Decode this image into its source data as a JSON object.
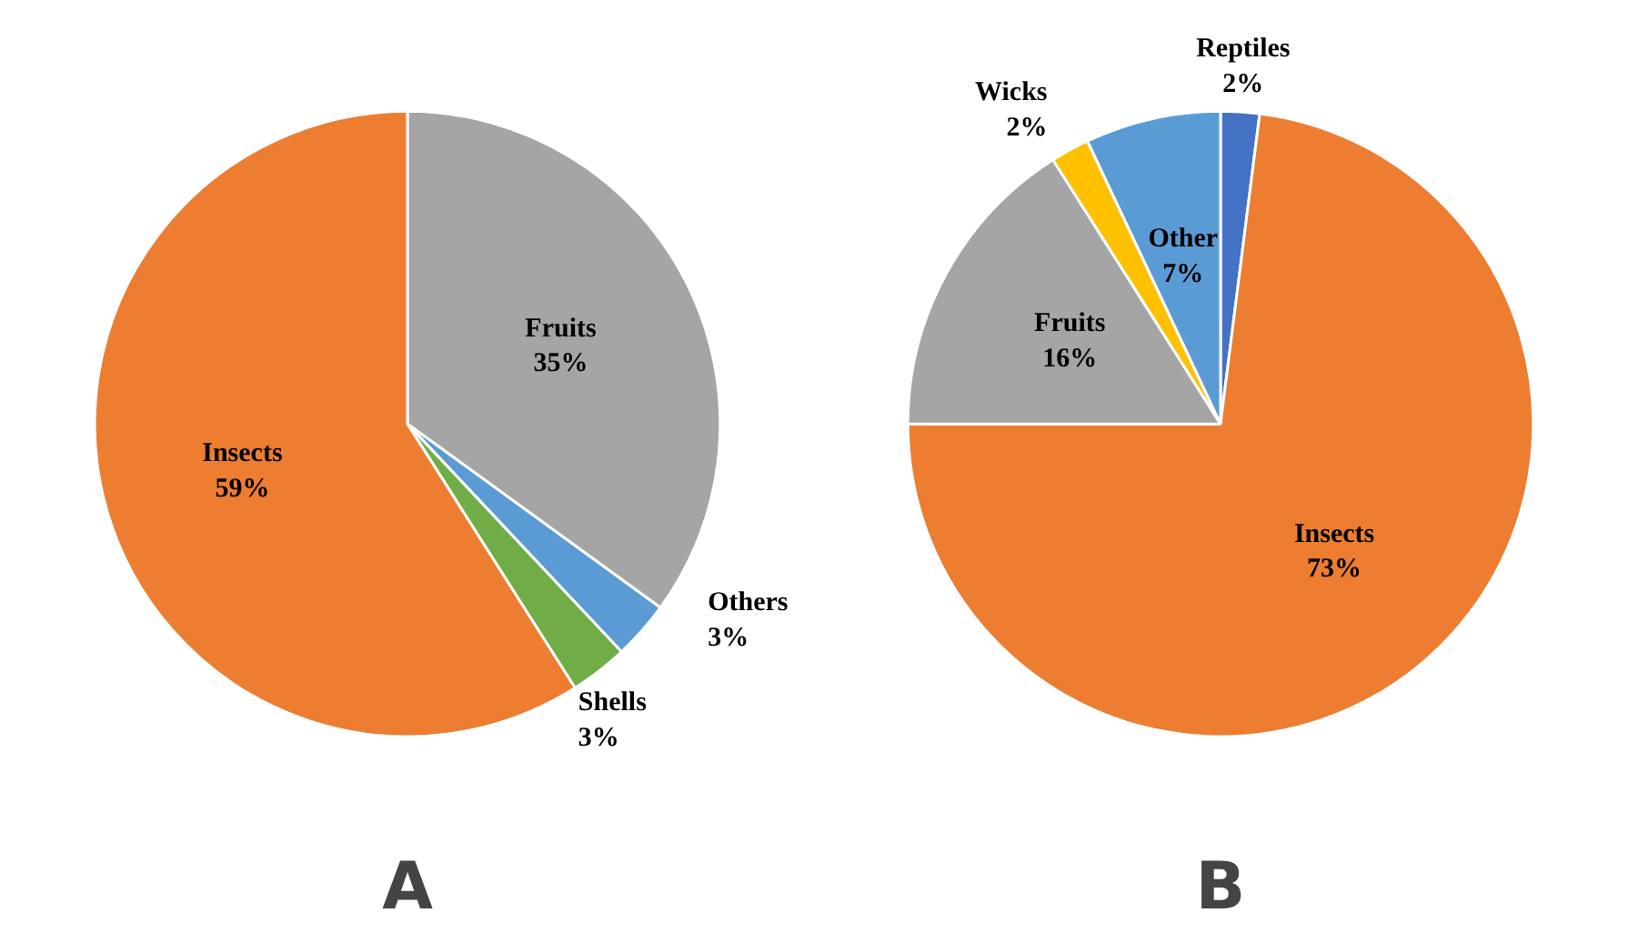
{
  "chart_data": [
    {
      "type": "pie",
      "title": "A",
      "categories": [
        "Fruits",
        "Others",
        "Shells",
        "Insects"
      ],
      "values": [
        35,
        3,
        3,
        59
      ],
      "value_labels": [
        "35%",
        "3%",
        "3%",
        "59%"
      ],
      "colors": [
        "#a5a5a5",
        "#5b9bd5",
        "#70ad47",
        "#ed7d31"
      ]
    },
    {
      "type": "pie",
      "title": "B",
      "categories": [
        "Reptiles",
        "Insects",
        "Fruits",
        "Wicks",
        "Other"
      ],
      "values": [
        2,
        73,
        16,
        2,
        7
      ],
      "value_labels": [
        "2%",
        "73%",
        "16%",
        "2%",
        "7%"
      ],
      "colors": [
        "#4472c4",
        "#ed7d31",
        "#a5a5a5",
        "#ffc000",
        "#5b9bd5"
      ]
    }
  ]
}
